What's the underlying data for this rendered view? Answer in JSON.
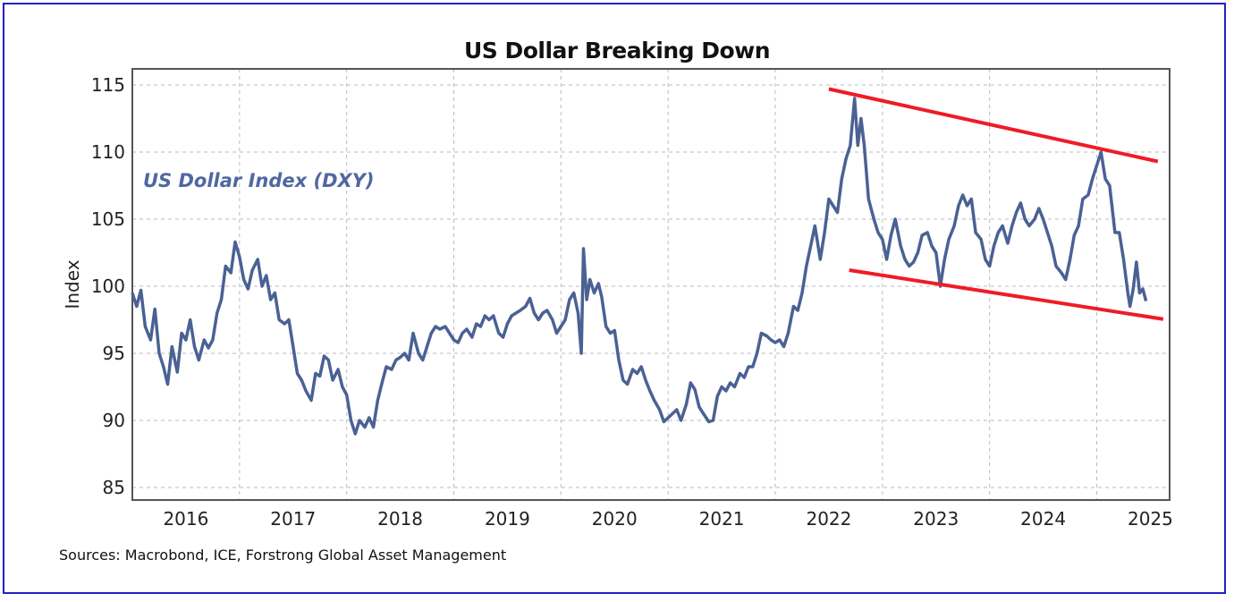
{
  "chart_data": {
    "type": "line",
    "title": "US Dollar Breaking Down",
    "xlabel": "",
    "ylabel": "Index",
    "xlim": [
      2016.0,
      2025.68
    ],
    "ylim": [
      84,
      116
    ],
    "yticks": [
      85,
      90,
      95,
      100,
      105,
      110,
      115
    ],
    "xtick_labels": [
      "2016",
      "2017",
      "2018",
      "2019",
      "2020",
      "2021",
      "2022",
      "2023",
      "2024",
      "2025"
    ],
    "grid": true,
    "series_color": "#4a6194",
    "trend_color": "#ee1c25",
    "series": [
      {
        "name": "US Dollar Index (DXY)",
        "x": [
          2016.0,
          2016.04,
          2016.08,
          2016.12,
          2016.17,
          2016.21,
          2016.25,
          2016.29,
          2016.33,
          2016.37,
          2016.42,
          2016.46,
          2016.5,
          2016.54,
          2016.58,
          2016.62,
          2016.67,
          2016.71,
          2016.75,
          2016.79,
          2016.83,
          2016.87,
          2016.92,
          2016.96,
          2017.0,
          2017.04,
          2017.08,
          2017.12,
          2017.17,
          2017.21,
          2017.25,
          2017.29,
          2017.33,
          2017.37,
          2017.42,
          2017.46,
          2017.5,
          2017.54,
          2017.58,
          2017.62,
          2017.67,
          2017.71,
          2017.75,
          2017.79,
          2017.83,
          2017.87,
          2017.92,
          2017.96,
          2018.0,
          2018.04,
          2018.08,
          2018.12,
          2018.17,
          2018.21,
          2018.25,
          2018.29,
          2018.33,
          2018.37,
          2018.42,
          2018.46,
          2018.5,
          2018.54,
          2018.58,
          2018.62,
          2018.67,
          2018.71,
          2018.75,
          2018.79,
          2018.83,
          2018.87,
          2018.92,
          2018.96,
          2019.0,
          2019.04,
          2019.08,
          2019.12,
          2019.17,
          2019.21,
          2019.25,
          2019.29,
          2019.33,
          2019.37,
          2019.42,
          2019.46,
          2019.5,
          2019.54,
          2019.58,
          2019.62,
          2019.67,
          2019.71,
          2019.75,
          2019.79,
          2019.83,
          2019.87,
          2019.92,
          2019.96,
          2020.0,
          2020.04,
          2020.08,
          2020.12,
          2020.16,
          2020.19,
          2020.21,
          2020.24,
          2020.27,
          2020.31,
          2020.35,
          2020.38,
          2020.42,
          2020.46,
          2020.5,
          2020.54,
          2020.58,
          2020.62,
          2020.67,
          2020.71,
          2020.75,
          2020.79,
          2020.83,
          2020.87,
          2020.92,
          2020.96,
          2021.0,
          2021.04,
          2021.08,
          2021.12,
          2021.17,
          2021.21,
          2021.25,
          2021.29,
          2021.33,
          2021.38,
          2021.42,
          2021.46,
          2021.5,
          2021.54,
          2021.58,
          2021.62,
          2021.67,
          2021.71,
          2021.75,
          2021.79,
          2021.83,
          2021.87,
          2021.92,
          2021.96,
          2022.0,
          2022.04,
          2022.08,
          2022.12,
          2022.17,
          2022.21,
          2022.25,
          2022.29,
          2022.33,
          2022.37,
          2022.42,
          2022.46,
          2022.5,
          2022.54,
          2022.58,
          2022.62,
          2022.66,
          2022.7,
          2022.74,
          2022.77,
          2022.8,
          2022.83,
          2022.87,
          2022.92,
          2022.96,
          2023.0,
          2023.04,
          2023.08,
          2023.12,
          2023.17,
          2023.21,
          2023.25,
          2023.29,
          2023.33,
          2023.37,
          2023.42,
          2023.46,
          2023.5,
          2023.54,
          2023.58,
          2023.62,
          2023.67,
          2023.71,
          2023.75,
          2023.79,
          2023.83,
          2023.87,
          2023.92,
          2023.96,
          2024.0,
          2024.04,
          2024.08,
          2024.12,
          2024.17,
          2024.21,
          2024.25,
          2024.29,
          2024.33,
          2024.37,
          2024.42,
          2024.46,
          2024.5,
          2024.54,
          2024.58,
          2024.62,
          2024.67,
          2024.71,
          2024.75,
          2024.79,
          2024.83,
          2024.87,
          2024.92,
          2024.96,
          2025.0,
          2025.04,
          2025.08,
          2025.12,
          2025.17,
          2025.21,
          2025.25,
          2025.29,
          2025.31,
          2025.34,
          2025.37,
          2025.4,
          2025.43,
          2025.46
        ],
        "y": [
          99.5,
          98.5,
          99.7,
          97.0,
          96.0,
          98.3,
          95.0,
          94.0,
          92.7,
          95.5,
          93.6,
          96.5,
          96.0,
          97.5,
          95.5,
          94.5,
          96.0,
          95.4,
          96.0,
          98.0,
          99.0,
          101.5,
          101.0,
          103.3,
          102.2,
          100.5,
          99.8,
          101.2,
          102.0,
          100.0,
          100.8,
          99.0,
          99.5,
          97.5,
          97.2,
          97.5,
          95.5,
          93.5,
          93.0,
          92.2,
          91.5,
          93.5,
          93.3,
          94.8,
          94.5,
          93.0,
          93.8,
          92.5,
          91.9,
          90.0,
          89.0,
          90.0,
          89.5,
          90.2,
          89.5,
          91.5,
          92.8,
          94.0,
          93.8,
          94.5,
          94.7,
          95.0,
          94.5,
          96.5,
          95.0,
          94.5,
          95.5,
          96.5,
          97.0,
          96.8,
          97.0,
          96.5,
          96.0,
          95.8,
          96.5,
          96.8,
          96.2,
          97.2,
          97.0,
          97.8,
          97.5,
          97.8,
          96.5,
          96.2,
          97.2,
          97.8,
          98.0,
          98.2,
          98.5,
          99.1,
          98.0,
          97.5,
          98.0,
          98.2,
          97.5,
          96.5,
          97.0,
          97.5,
          99.0,
          99.5,
          98.0,
          95.0,
          102.8,
          99.0,
          100.5,
          99.5,
          100.2,
          99.2,
          97.0,
          96.5,
          96.7,
          94.5,
          93.0,
          92.7,
          93.8,
          93.5,
          94.0,
          93.0,
          92.2,
          91.5,
          90.8,
          89.9,
          90.2,
          90.5,
          90.8,
          90.0,
          91.2,
          92.8,
          92.3,
          91.0,
          90.5,
          89.9,
          90.0,
          91.8,
          92.5,
          92.2,
          92.8,
          92.5,
          93.5,
          93.2,
          94.0,
          94.0,
          95.0,
          96.5,
          96.3,
          96.0,
          95.8,
          96.0,
          95.5,
          96.5,
          98.5,
          98.2,
          99.5,
          101.5,
          103.0,
          104.5,
          102.0,
          104.0,
          106.5,
          106.0,
          105.5,
          108.0,
          109.5,
          110.5,
          114.0,
          110.5,
          112.5,
          110.5,
          106.5,
          105.0,
          104.0,
          103.5,
          102.0,
          103.8,
          105.0,
          103.0,
          102.0,
          101.5,
          101.8,
          102.5,
          103.8,
          104.0,
          103.0,
          102.5,
          100.0,
          102.0,
          103.5,
          104.5,
          106.0,
          106.8,
          106.0,
          106.5,
          104.0,
          103.5,
          102.0,
          101.5,
          103.0,
          104.0,
          104.5,
          103.2,
          104.5,
          105.5,
          106.2,
          105.0,
          104.5,
          105.0,
          105.8,
          105.0,
          104.0,
          103.0,
          101.5,
          101.0,
          100.5,
          102.0,
          103.8,
          104.5,
          106.5,
          106.8,
          108.0,
          109.0,
          110.0,
          108.0,
          107.5,
          104.0,
          104.0,
          102.0,
          99.5,
          98.5,
          99.8,
          101.8,
          99.5,
          99.8,
          98.9
        ]
      }
    ],
    "trendlines": [
      {
        "name": "upper",
        "x": [
          2022.5,
          2025.57
        ],
        "y": [
          114.7,
          109.3
        ]
      },
      {
        "name": "lower",
        "x": [
          2022.69,
          2025.62
        ],
        "y": [
          101.2,
          97.55
        ]
      }
    ],
    "annotations": [
      "US Dollar Index (DXY)"
    ],
    "source": "Sources: Macrobond, ICE, Forstrong Global Asset Management"
  }
}
